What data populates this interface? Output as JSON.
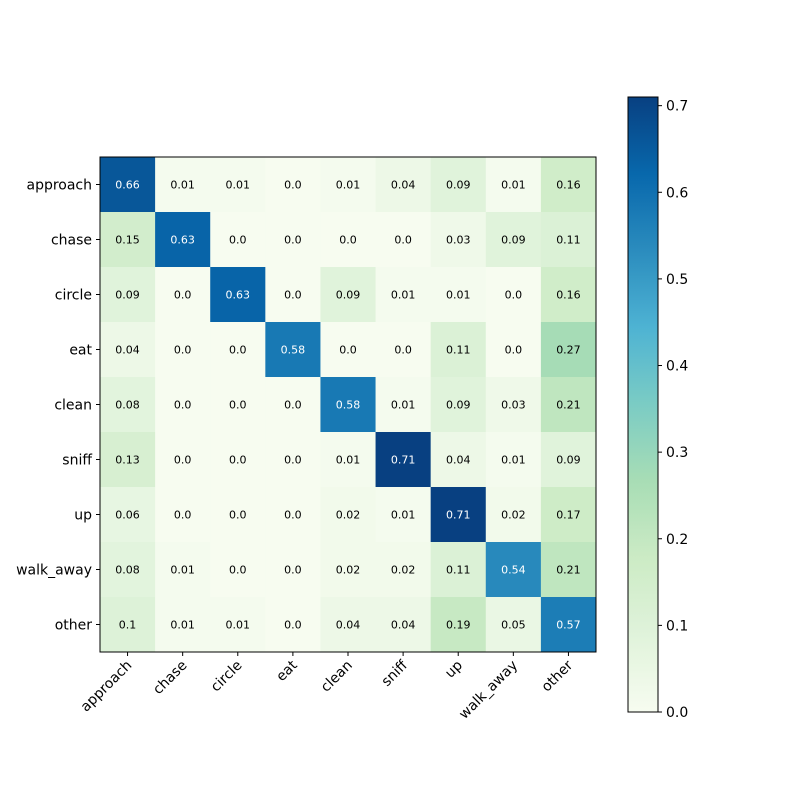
{
  "chart_data": {
    "type": "heatmap",
    "title": "",
    "xlabel": "",
    "ylabel": "",
    "colormap": "GnBu",
    "colormap_stops": [
      "#f7fcf0",
      "#e0f3db",
      "#ccebc5",
      "#a8ddb5",
      "#7bccc4",
      "#4eb3d3",
      "#2b8cbe",
      "#0868ac",
      "#084081"
    ],
    "value_range": [
      0.0,
      0.71
    ],
    "row_labels": [
      "approach",
      "chase",
      "circle",
      "eat",
      "clean",
      "sniff",
      "up",
      "walk_away",
      "other"
    ],
    "col_labels": [
      "approach",
      "chase",
      "circle",
      "eat",
      "clean",
      "sniff",
      "up",
      "walk_away",
      "other"
    ],
    "cell_text": [
      [
        "0.66",
        "0.01",
        "0.01",
        "0.0",
        "0.01",
        "0.04",
        "0.09",
        "0.01",
        "0.16"
      ],
      [
        "0.15",
        "0.63",
        "0.0",
        "0.0",
        "0.0",
        "0.0",
        "0.03",
        "0.09",
        "0.11"
      ],
      [
        "0.09",
        "0.0",
        "0.63",
        "0.0",
        "0.09",
        "0.01",
        "0.01",
        "0.0",
        "0.16"
      ],
      [
        "0.04",
        "0.0",
        "0.0",
        "0.58",
        "0.0",
        "0.0",
        "0.11",
        "0.0",
        "0.27"
      ],
      [
        "0.08",
        "0.0",
        "0.0",
        "0.0",
        "0.58",
        "0.01",
        "0.09",
        "0.03",
        "0.21"
      ],
      [
        "0.13",
        "0.0",
        "0.0",
        "0.0",
        "0.01",
        "0.71",
        "0.04",
        "0.01",
        "0.09"
      ],
      [
        "0.06",
        "0.0",
        "0.0",
        "0.0",
        "0.02",
        "0.01",
        "0.71",
        "0.02",
        "0.17"
      ],
      [
        "0.08",
        "0.01",
        "0.0",
        "0.0",
        "0.02",
        "0.02",
        "0.11",
        "0.54",
        "0.21"
      ],
      [
        "0.1",
        "0.01",
        "0.01",
        "0.0",
        "0.04",
        "0.04",
        "0.19",
        "0.05",
        "0.57"
      ]
    ],
    "colorbar": {
      "ticks": [
        0.0,
        0.1,
        0.2,
        0.3,
        0.4,
        0.5,
        0.6,
        0.7
      ],
      "tick_labels": [
        "0.0",
        "0.1",
        "0.2",
        "0.3",
        "0.4",
        "0.5",
        "0.6",
        "0.7"
      ]
    }
  }
}
